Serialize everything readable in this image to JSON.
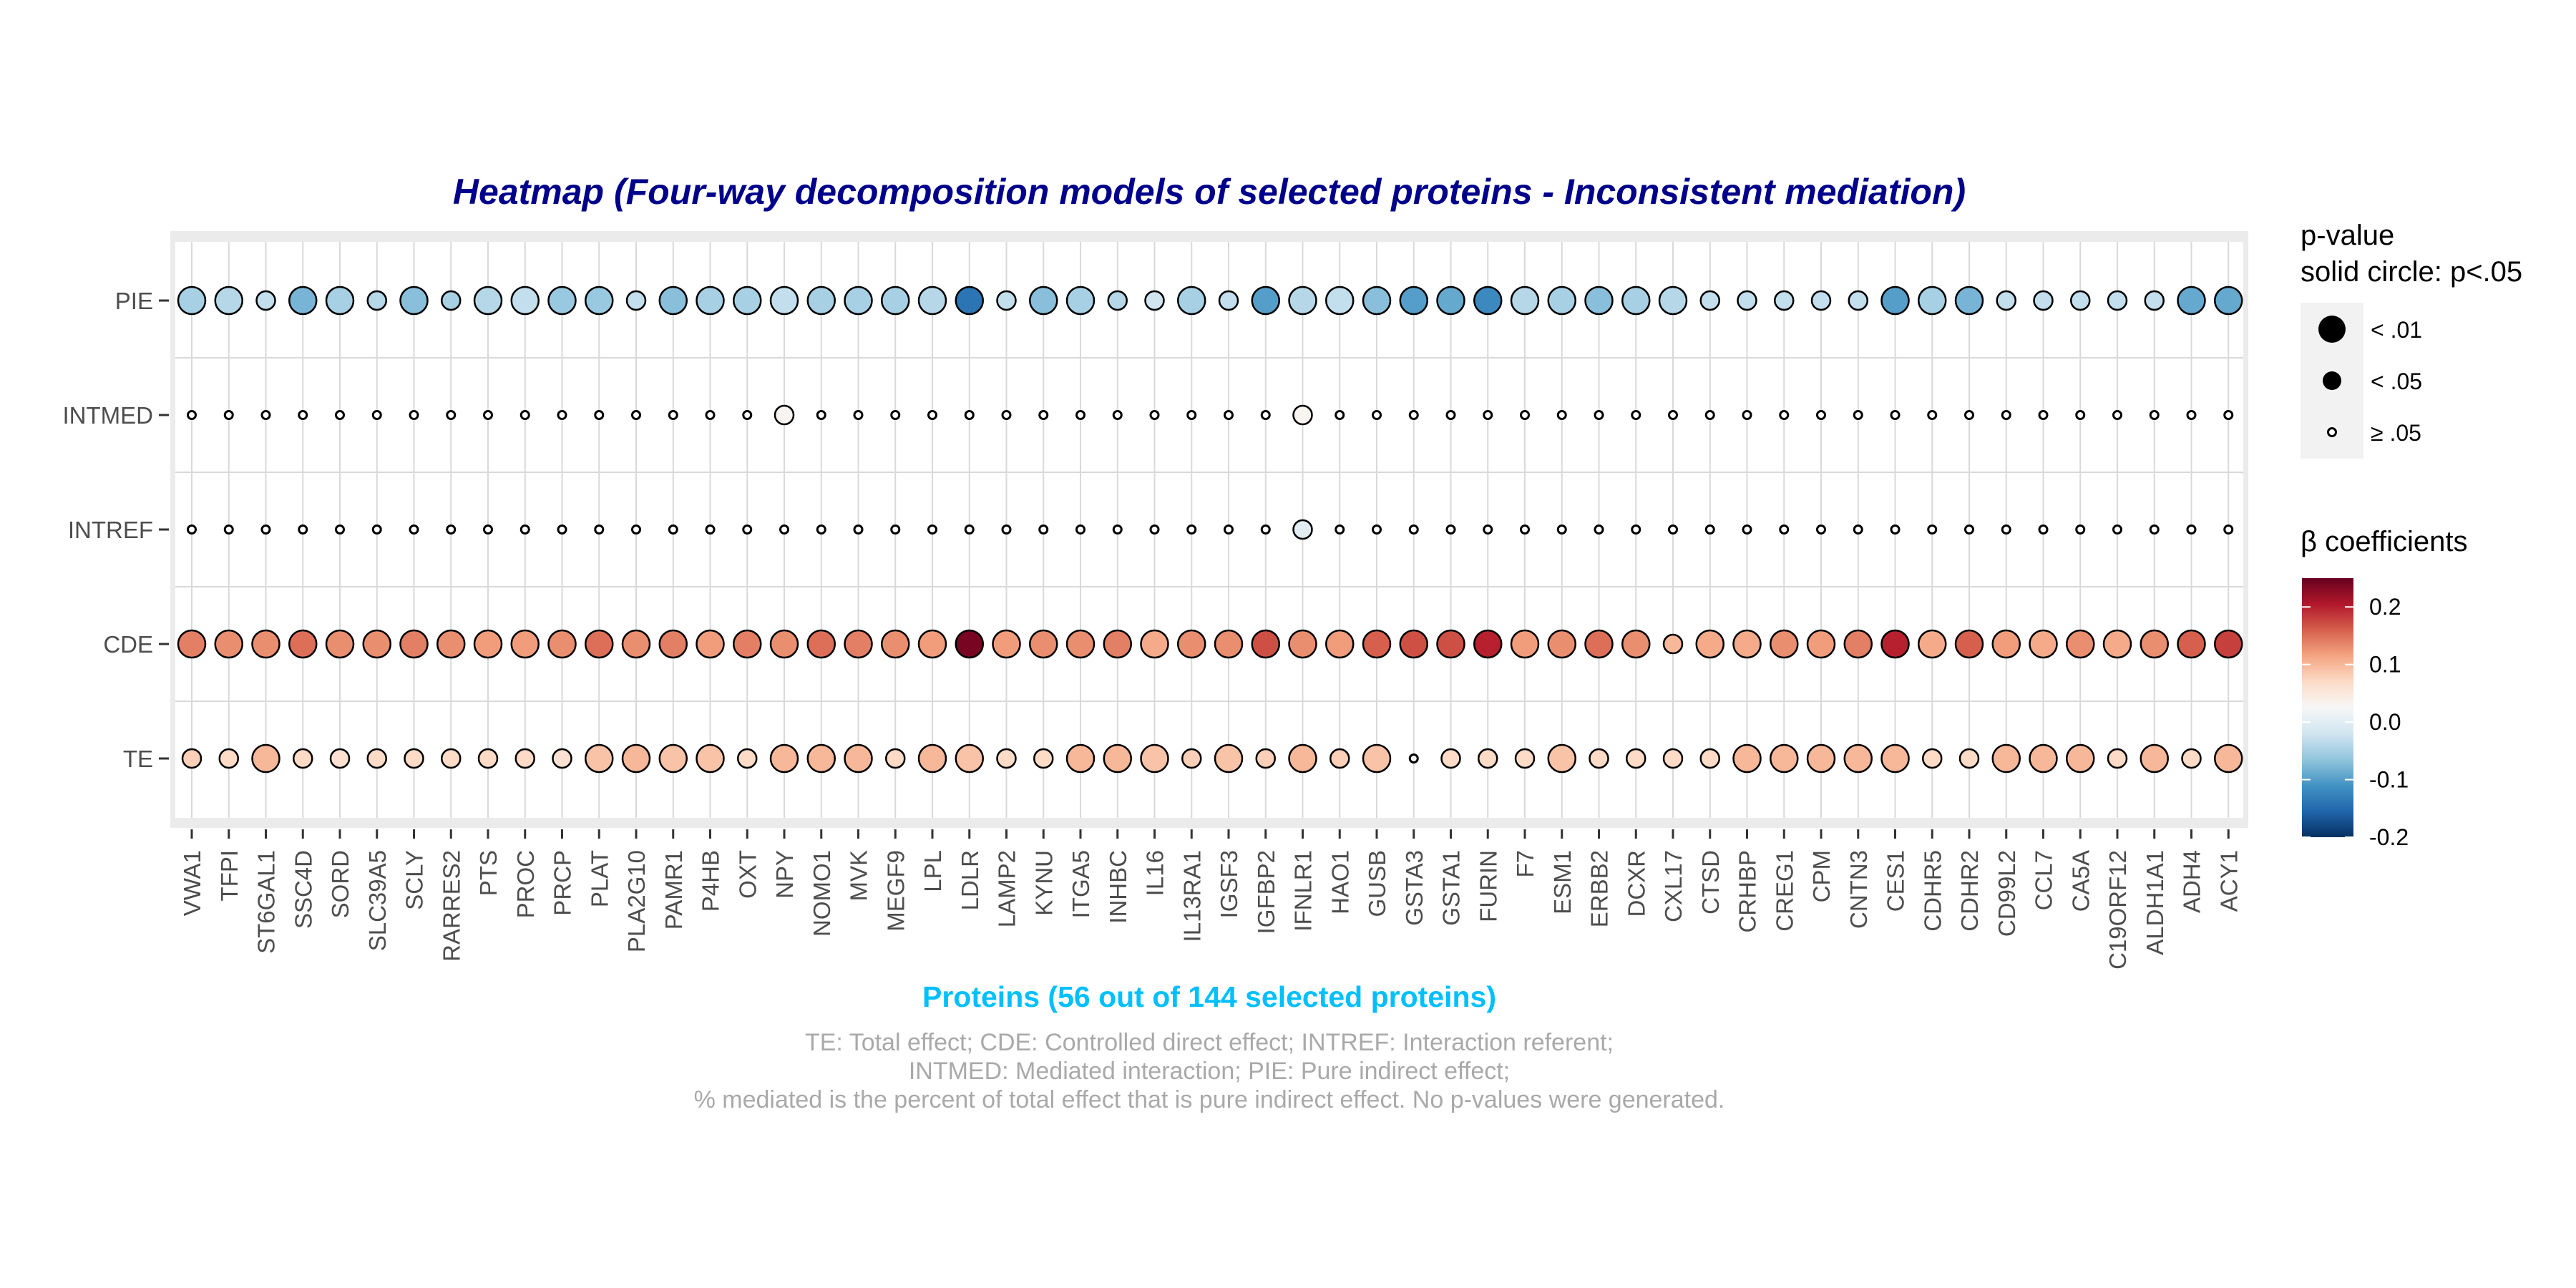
{
  "chart_data": {
    "type": "heatmap",
    "title": "Heatmap (Four-way decomposition models of selected proteins - Inconsistent mediation)",
    "xlabel": "Proteins (56 out of 144 selected proteins)",
    "ylabel": "",
    "caption": [
      "TE: Total effect; CDE: Controlled direct effect; INTREF: Interaction referent;",
      "INTMED: Mediated interaction; PIE: Pure indirect effect;",
      "% mediated is the percent of total effect that is pure indirect effect. No p-values were generated."
    ],
    "rows": [
      "PIE",
      "INTMED",
      "INTREF",
      "CDE",
      "TE"
    ],
    "proteins": [
      "VWA1",
      "TFPI",
      "ST6GAL1",
      "SSC4D",
      "SORD",
      "SLC39A5",
      "SCLY",
      "RARRES2",
      "PTS",
      "PROC",
      "PRCP",
      "PLAT",
      "PLA2G10",
      "PAMR1",
      "P4HB",
      "OXT",
      "NPY",
      "NOMO1",
      "MVK",
      "MEGF9",
      "LPL",
      "LDLR",
      "LAMP2",
      "KYNU",
      "ITGA5",
      "INHBC",
      "IL16",
      "IL13RA1",
      "IGSF3",
      "IGFBP2",
      "IFNLR1",
      "HAO1",
      "GUSB",
      "GSTA3",
      "GSTA1",
      "FURIN",
      "F7",
      "ESM1",
      "ERBB2",
      "DCXR",
      "CXL17",
      "CTSD",
      "CRHBP",
      "CREG1",
      "CPM",
      "CNTN3",
      "CES1",
      "CDHR5",
      "CDHR2",
      "CD99L2",
      "CCL7",
      "CA5A",
      "C19ORF12",
      "ALDH1A1",
      "ADH4",
      "ACY1"
    ],
    "beta": {
      "PIE": [
        -0.05,
        -0.04,
        -0.03,
        -0.08,
        -0.05,
        -0.04,
        -0.07,
        -0.05,
        -0.04,
        -0.03,
        -0.06,
        -0.06,
        -0.03,
        -0.07,
        -0.05,
        -0.05,
        -0.03,
        -0.05,
        -0.05,
        -0.05,
        -0.04,
        -0.14,
        -0.03,
        -0.07,
        -0.05,
        -0.04,
        -0.02,
        -0.05,
        -0.03,
        -0.1,
        -0.04,
        -0.03,
        -0.07,
        -0.1,
        -0.09,
        -0.12,
        -0.04,
        -0.05,
        -0.07,
        -0.05,
        -0.04,
        -0.03,
        -0.03,
        -0.03,
        -0.03,
        -0.03,
        -0.1,
        -0.05,
        -0.08,
        -0.03,
        -0.03,
        -0.03,
        -0.03,
        -0.03,
        -0.09,
        -0.09
      ],
      "INTMED": [
        0,
        0,
        0,
        0,
        0,
        0,
        0,
        0,
        0,
        0,
        0,
        0,
        0,
        0,
        0,
        0,
        0.03,
        0,
        0,
        0,
        0,
        0,
        0,
        0,
        0,
        0,
        0,
        0,
        0,
        0,
        0.03,
        0,
        0,
        0,
        0,
        0,
        0,
        0,
        0,
        0,
        0,
        0,
        0,
        0,
        0,
        0,
        0,
        0,
        0,
        0,
        0,
        0,
        0,
        0,
        0,
        0
      ],
      "INTREF": [
        0,
        0,
        0,
        0,
        0,
        0,
        0,
        0,
        0,
        0,
        0,
        0,
        0,
        0,
        0,
        0,
        0,
        0,
        0,
        0,
        0,
        0,
        0,
        0,
        0,
        0,
        0,
        0,
        0,
        0,
        0,
        0,
        0,
        0,
        0,
        0,
        0,
        0,
        0,
        0,
        0,
        0,
        0,
        0,
        0,
        0,
        0,
        0,
        0,
        0,
        0,
        0,
        0,
        0,
        0,
        0
      ],
      "CDE": [
        0.14,
        0.13,
        0.13,
        0.15,
        0.13,
        0.13,
        0.14,
        0.13,
        0.12,
        0.12,
        0.13,
        0.15,
        0.13,
        0.14,
        0.12,
        0.14,
        0.13,
        0.15,
        0.14,
        0.13,
        0.12,
        0.24,
        0.12,
        0.13,
        0.13,
        0.14,
        0.11,
        0.13,
        0.13,
        0.17,
        0.13,
        0.12,
        0.16,
        0.17,
        0.17,
        0.2,
        0.12,
        0.13,
        0.15,
        0.13,
        0.1,
        0.11,
        0.11,
        0.13,
        0.12,
        0.14,
        0.2,
        0.11,
        0.16,
        0.12,
        0.11,
        0.13,
        0.11,
        0.13,
        0.16,
        0.18
      ],
      "TE": [
        0.08,
        0.07,
        0.1,
        0.07,
        0.06,
        0.07,
        0.07,
        0.07,
        0.07,
        0.07,
        0.06,
        0.09,
        0.1,
        0.09,
        0.09,
        0.07,
        0.1,
        0.1,
        0.1,
        0.07,
        0.1,
        0.09,
        0.07,
        0.07,
        0.1,
        0.1,
        0.09,
        0.08,
        0.09,
        0.08,
        0.1,
        0.08,
        0.09,
        0.02,
        0.07,
        0.07,
        0.07,
        0.09,
        0.07,
        0.07,
        0.07,
        0.07,
        0.1,
        0.1,
        0.1,
        0.1,
        0.1,
        0.07,
        0.07,
        0.1,
        0.1,
        0.1,
        0.07,
        0.1,
        0.07,
        0.1
      ]
    },
    "pvalue": {
      "PIE": [
        "<.01",
        "<.01",
        "<.05",
        "<.01",
        "<.01",
        "<.05",
        "<.01",
        "<.05",
        "<.01",
        "<.01",
        "<.01",
        "<.01",
        "<.05",
        "<.01",
        "<.01",
        "<.01",
        "<.01",
        "<.01",
        "<.01",
        "<.01",
        "<.01",
        "<.01",
        "<.05",
        "<.01",
        "<.01",
        "<.05",
        "<.05",
        "<.01",
        "<.05",
        "<.01",
        "<.01",
        "<.01",
        "<.01",
        "<.01",
        "<.01",
        "<.01",
        "<.01",
        "<.01",
        "<.01",
        "<.01",
        "<.01",
        "<.05",
        "<.05",
        "<.05",
        "<.05",
        "<.05",
        "<.01",
        "<.01",
        "<.01",
        "<.05",
        "<.05",
        "<.05",
        "<.05",
        "<.05",
        "<.01",
        "<.01"
      ],
      "INTMED": [
        ">=.05",
        ">=.05",
        ">=.05",
        ">=.05",
        ">=.05",
        ">=.05",
        ">=.05",
        ">=.05",
        ">=.05",
        ">=.05",
        ">=.05",
        ">=.05",
        ">=.05",
        ">=.05",
        ">=.05",
        ">=.05",
        "<.05",
        ">=.05",
        ">=.05",
        ">=.05",
        ">=.05",
        ">=.05",
        ">=.05",
        ">=.05",
        ">=.05",
        ">=.05",
        ">=.05",
        ">=.05",
        ">=.05",
        ">=.05",
        "<.05",
        ">=.05",
        ">=.05",
        ">=.05",
        ">=.05",
        ">=.05",
        ">=.05",
        ">=.05",
        ">=.05",
        ">=.05",
        ">=.05",
        ">=.05",
        ">=.05",
        ">=.05",
        ">=.05",
        ">=.05",
        ">=.05",
        ">=.05",
        ">=.05",
        ">=.05",
        ">=.05",
        ">=.05",
        ">=.05",
        ">=.05",
        ">=.05",
        ">=.05"
      ],
      "INTREF": [
        ">=.05",
        ">=.05",
        ">=.05",
        ">=.05",
        ">=.05",
        ">=.05",
        ">=.05",
        ">=.05",
        ">=.05",
        ">=.05",
        ">=.05",
        ">=.05",
        ">=.05",
        ">=.05",
        ">=.05",
        ">=.05",
        ">=.05",
        ">=.05",
        ">=.05",
        ">=.05",
        ">=.05",
        ">=.05",
        ">=.05",
        ">=.05",
        ">=.05",
        ">=.05",
        ">=.05",
        ">=.05",
        ">=.05",
        ">=.05",
        "<.05",
        ">=.05",
        ">=.05",
        ">=.05",
        ">=.05",
        ">=.05",
        ">=.05",
        ">=.05",
        ">=.05",
        ">=.05",
        ">=.05",
        ">=.05",
        ">=.05",
        ">=.05",
        ">=.05",
        ">=.05",
        ">=.05",
        ">=.05",
        ">=.05",
        ">=.05",
        ">=.05",
        ">=.05",
        ">=.05",
        ">=.05",
        ">=.05",
        ">=.05"
      ],
      "CDE": [
        "<.01",
        "<.01",
        "<.01",
        "<.01",
        "<.01",
        "<.01",
        "<.01",
        "<.01",
        "<.01",
        "<.01",
        "<.01",
        "<.01",
        "<.01",
        "<.01",
        "<.01",
        "<.01",
        "<.01",
        "<.01",
        "<.01",
        "<.01",
        "<.01",
        "<.01",
        "<.01",
        "<.01",
        "<.01",
        "<.01",
        "<.01",
        "<.01",
        "<.01",
        "<.01",
        "<.01",
        "<.01",
        "<.01",
        "<.01",
        "<.01",
        "<.01",
        "<.01",
        "<.01",
        "<.01",
        "<.01",
        "<.05",
        "<.01",
        "<.01",
        "<.01",
        "<.01",
        "<.01",
        "<.01",
        "<.01",
        "<.01",
        "<.01",
        "<.01",
        "<.01",
        "<.01",
        "<.01",
        "<.01",
        "<.01"
      ],
      "TE": [
        "<.05",
        "<.05",
        "<.01",
        "<.05",
        "<.05",
        "<.05",
        "<.05",
        "<.05",
        "<.05",
        "<.05",
        "<.05",
        "<.01",
        "<.01",
        "<.01",
        "<.01",
        "<.05",
        "<.01",
        "<.01",
        "<.01",
        "<.05",
        "<.01",
        "<.01",
        "<.05",
        "<.05",
        "<.01",
        "<.01",
        "<.01",
        "<.05",
        "<.01",
        "<.05",
        "<.01",
        "<.05",
        "<.01",
        ">=.05",
        "<.05",
        "<.05",
        "<.05",
        "<.01",
        "<.05",
        "<.05",
        "<.05",
        "<.05",
        "<.01",
        "<.01",
        "<.01",
        "<.01",
        "<.01",
        "<.05",
        "<.05",
        "<.01",
        "<.01",
        "<.01",
        "<.05",
        "<.01",
        "<.05",
        "<.01"
      ]
    },
    "legend_pvalue": {
      "title_line1": "p-value",
      "title_line2": "solid circle: p<.05",
      "labels": [
        "< .01",
        "< .05",
        "≥ .05"
      ]
    },
    "legend_beta": {
      "title": "β coefficients",
      "range": [
        -0.2,
        0.25
      ],
      "tick_values": [
        0.2,
        0.1,
        0.0,
        -0.1,
        -0.2
      ],
      "tick_labels": [
        "0.2",
        "0.1",
        "0.0",
        "-0.1",
        "-0.2"
      ],
      "colors": [
        "#053061",
        "#2166ac",
        "#4393c3",
        "#92c5de",
        "#d1e5f0",
        "#f7f7f7",
        "#fddbc7",
        "#f4a582",
        "#d6604d",
        "#b2182b",
        "#67001f"
      ]
    },
    "colors": {
      "title": "#00008b",
      "xlabel": "#00bfff",
      "caption": "#a9a9a9",
      "panel_bg": "#ebebeb",
      "grid": "#d9d9d9"
    },
    "grid": true,
    "legend_position": "right"
  }
}
